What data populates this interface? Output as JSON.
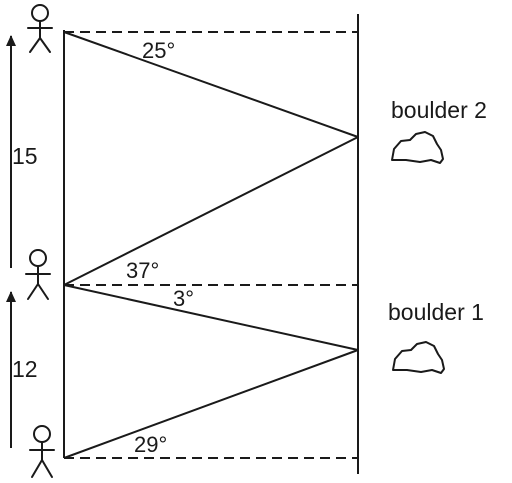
{
  "angles": {
    "top_boulder2": "25°",
    "mid_boulder2": "37°",
    "mid_boulder1": "3°",
    "bottom_boulder1": "29°"
  },
  "distances": {
    "upper": "15",
    "lower": "12"
  },
  "boulders": {
    "upper": "boulder 2",
    "lower": "boulder 1"
  }
}
